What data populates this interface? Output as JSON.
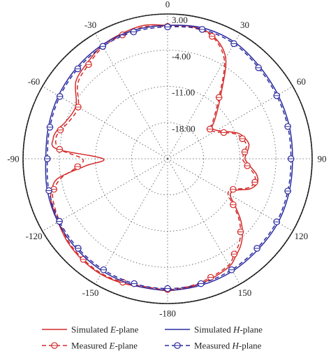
{
  "chart_data": {
    "type": "polar-line",
    "title": "",
    "angular_unit": "degrees",
    "angle_zero": "top",
    "angle_direction": "clockwise",
    "angle_ticks": [
      "0",
      "30",
      "60",
      "90",
      "120",
      "150",
      "-180",
      "-150",
      "-120",
      "-90",
      "-60",
      "-30"
    ],
    "angle_tick_values": [
      0,
      30,
      60,
      90,
      120,
      150,
      180,
      210,
      240,
      270,
      300,
      330
    ],
    "radial_ticks": [
      "3.00",
      "-4.00",
      "-11.00",
      "-18.00"
    ],
    "radial_tick_values": [
      3,
      -4,
      -11,
      -18
    ],
    "r_range": [
      -25,
      3
    ],
    "grid": true,
    "legend_position": "bottom",
    "colors": {
      "e_plane": "#d42a2a",
      "h_plane": "#2a2aa0"
    },
    "series": [
      {
        "name": "Simulated E-plane",
        "legend_prefix": "Simulated ",
        "legend_italic": "E",
        "legend_suffix": "-plane",
        "style": "solid",
        "color": "#d42a2a",
        "theta": [
          0,
          10,
          20,
          30,
          40,
          50,
          55,
          60,
          65,
          70,
          75,
          80,
          85,
          90,
          95,
          100,
          105,
          110,
          115,
          120,
          125,
          130,
          135,
          140,
          145,
          150,
          160,
          170,
          180,
          190,
          200,
          210,
          220,
          230,
          240,
          250,
          255,
          260,
          265,
          270,
          275,
          280,
          285,
          290,
          300,
          310,
          320,
          330,
          340,
          350
        ],
        "r": [
          0.8,
          1.0,
          0.4,
          -2.5,
          -9.0,
          -13.0,
          -14.5,
          -14.0,
          -12.5,
          -10.5,
          -9.5,
          -9.0,
          -9.5,
          -10.0,
          -9.0,
          -7.5,
          -7.0,
          -8.0,
          -10.5,
          -11.0,
          -9.0,
          -6.5,
          -4.5,
          -3.0,
          -2.0,
          -1.0,
          -0.3,
          0.2,
          0.5,
          0.3,
          0.6,
          0.8,
          0.6,
          0.2,
          -0.5,
          -1.0,
          -1.8,
          -3.5,
          -9.0,
          -12.5,
          -3.5,
          -2.5,
          -3.0,
          -4.0,
          -4.5,
          -1.8,
          -0.8,
          0.3,
          0.8,
          1.2
        ]
      },
      {
        "name": "Measured E-plane",
        "legend_prefix": "Measured ",
        "legend_italic": "E",
        "legend_suffix": "-plane",
        "style": "dashed-marker",
        "color": "#d42a2a",
        "theta": [
          0,
          10,
          20,
          30,
          40,
          50,
          55,
          60,
          65,
          70,
          75,
          80,
          85,
          90,
          95,
          100,
          105,
          110,
          115,
          120,
          125,
          130,
          135,
          140,
          145,
          150,
          160,
          170,
          180,
          190,
          200,
          210,
          220,
          230,
          240,
          250,
          255,
          260,
          265,
          270,
          275,
          280,
          285,
          290,
          300,
          310,
          320,
          330,
          340,
          350
        ],
        "r": [
          0.6,
          0.8,
          0.2,
          -3.0,
          -9.5,
          -13.5,
          -15.0,
          -14.5,
          -13.0,
          -11.0,
          -10.0,
          -9.5,
          -10.0,
          -10.5,
          -9.5,
          -8.0,
          -7.5,
          -8.5,
          -11.0,
          -11.5,
          -9.5,
          -7.0,
          -5.0,
          -3.5,
          -2.5,
          -1.3,
          -0.6,
          0.0,
          0.3,
          0.1,
          0.4,
          0.6,
          0.4,
          0.0,
          -0.8,
          -1.4,
          -2.2,
          -4.2,
          -7.5,
          -8.5,
          -4.0,
          -3.0,
          -3.5,
          -4.5,
          -5.0,
          -2.3,
          -1.2,
          0.0,
          0.5,
          0.9
        ]
      },
      {
        "name": "Simulated H-plane",
        "legend_prefix": "Simulated ",
        "legend_italic": "H",
        "legend_suffix": "-plane",
        "style": "solid",
        "color": "#2a2aa0",
        "theta": [
          0,
          15,
          30,
          45,
          60,
          75,
          90,
          105,
          120,
          135,
          150,
          165,
          180,
          195,
          210,
          225,
          240,
          255,
          270,
          285,
          300,
          315,
          330,
          345
        ],
        "r": [
          0.8,
          1.2,
          1.0,
          0.2,
          -0.3,
          -0.6,
          -0.8,
          -0.6,
          -0.3,
          -0.2,
          0.1,
          0.3,
          0.4,
          0.3,
          0.1,
          -0.2,
          -0.5,
          -0.9,
          -1.4,
          -1.1,
          -0.6,
          -0.1,
          0.4,
          0.7
        ]
      },
      {
        "name": "Measured H-plane",
        "legend_prefix": "Measured ",
        "legend_italic": "H",
        "legend_suffix": "-plane",
        "style": "dashed-marker",
        "color": "#2a2aa0",
        "theta": [
          0,
          15,
          30,
          45,
          60,
          75,
          90,
          105,
          120,
          135,
          150,
          165,
          180,
          195,
          210,
          225,
          240,
          255,
          270,
          285,
          300,
          315,
          330,
          345
        ],
        "r": [
          0.5,
          0.9,
          0.7,
          -0.1,
          -0.6,
          -0.9,
          -1.1,
          -0.9,
          -0.6,
          -0.5,
          -0.2,
          0.0,
          0.1,
          0.0,
          -0.2,
          -0.5,
          -0.8,
          -1.2,
          -1.7,
          -1.4,
          -0.9,
          -0.4,
          0.1,
          0.4
        ]
      }
    ]
  }
}
